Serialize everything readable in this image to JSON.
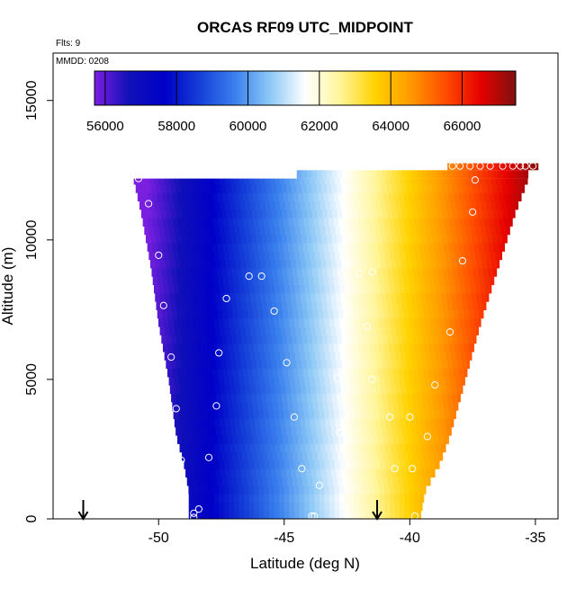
{
  "chart_data": {
    "type": "heatmap",
    "title": "ORCAS RF09 UTC_MIDPOINT",
    "xlabel": "Latitude (deg N)",
    "ylabel": "Altitude (m)",
    "xlim": [
      -54.2,
      -34.1
    ],
    "ylim": [
      0,
      16700
    ],
    "x_ticks": [
      -50,
      -45,
      -40,
      -35
    ],
    "x_tick_labels": [
      "-50",
      "-45",
      "-40",
      "-35"
    ],
    "y_ticks": [
      0,
      5000,
      10000,
      15000
    ],
    "y_tick_labels": [
      "0",
      "5000",
      "10000",
      "15000"
    ],
    "annotations": {
      "flights": "Flts: 9",
      "date": "MMDD: 0208"
    },
    "colorbar": {
      "min": 55700,
      "max": 67500,
      "ticks": [
        56000,
        58000,
        60000,
        62000,
        64000,
        66000
      ],
      "tick_labels": [
        "56000",
        "58000",
        "60000",
        "62000",
        "64000",
        "66000"
      ],
      "placement": "top-inside"
    },
    "colormap": [
      "#7a1fe0",
      "#1010b8",
      "#0000c8",
      "#1540d8",
      "#3a80ee",
      "#8cc8f6",
      "#ffffff",
      "#fff59a",
      "#ffd200",
      "#ff9a00",
      "#ff4c00",
      "#e60000",
      "#7f1010"
    ],
    "profile_edges": [
      {
        "alt": 0,
        "west": -48.8,
        "east": -39.6
      },
      {
        "alt": 1000,
        "west": -48.8,
        "east": -39.4
      },
      {
        "alt": 2000,
        "west": -49.0,
        "east": -38.8
      },
      {
        "alt": 3000,
        "west": -49.3,
        "east": -38.4
      },
      {
        "alt": 5000,
        "west": -49.6,
        "east": -37.8
      },
      {
        "alt": 7000,
        "west": -50.0,
        "east": -37.2
      },
      {
        "alt": 9000,
        "west": -50.3,
        "east": -36.5
      },
      {
        "alt": 11000,
        "west": -50.7,
        "east": -35.8
      },
      {
        "alt": 12200,
        "west": -51.0,
        "east": -35.3
      }
    ],
    "top_strip": {
      "alt_low": 12200,
      "alt_high": 12500,
      "west": -44.5,
      "east": -35.3
    },
    "top_cap": {
      "alt_low": 12500,
      "alt_high": 12750,
      "west": -38.5,
      "east": -34.9
    },
    "time_gradient": {
      "lat0": -49.0,
      "val0": 56800,
      "lat1": -35.5,
      "val1": 67000
    },
    "points": [
      [
        -50.8,
        12200
      ],
      [
        -50.4,
        11300
      ],
      [
        -50.0,
        9450
      ],
      [
        -49.8,
        7650
      ],
      [
        -49.5,
        5800
      ],
      [
        -49.3,
        3950
      ],
      [
        -49.1,
        2100
      ],
      [
        -48.6,
        200
      ],
      [
        -48.6,
        50
      ],
      [
        -48.4,
        350
      ],
      [
        -48.0,
        2200
      ],
      [
        -47.7,
        4050
      ],
      [
        -47.6,
        5950
      ],
      [
        -47.3,
        7900
      ],
      [
        -46.4,
        8700
      ],
      [
        -45.9,
        8700
      ],
      [
        -45.4,
        7450
      ],
      [
        -44.9,
        5600
      ],
      [
        -44.6,
        3650
      ],
      [
        -44.3,
        1800
      ],
      [
        -43.9,
        100
      ],
      [
        -43.8,
        100
      ],
      [
        -43.6,
        1200
      ],
      [
        -42.8,
        3100
      ],
      [
        -42.9,
        5050
      ],
      [
        -42.5,
        6950
      ],
      [
        -42.0,
        8800
      ],
      [
        -41.5,
        8850
      ],
      [
        -41.7,
        6900
      ],
      [
        -41.5,
        5000
      ],
      [
        -40.8,
        3650
      ],
      [
        -40.6,
        1800
      ],
      [
        -40.0,
        3650
      ],
      [
        -39.9,
        1800
      ],
      [
        -39.8,
        100
      ],
      [
        -39.3,
        2950
      ],
      [
        -39.0,
        4800
      ],
      [
        -38.4,
        6700
      ],
      [
        -37.9,
        9250
      ],
      [
        -37.5,
        11000
      ],
      [
        -37.4,
        12150
      ],
      [
        -38.3,
        12650
      ],
      [
        -38.0,
        12650
      ],
      [
        -37.6,
        12650
      ],
      [
        -37.2,
        12650
      ],
      [
        -36.8,
        12650
      ],
      [
        -36.3,
        12650
      ],
      [
        -35.9,
        12650
      ],
      [
        -35.6,
        12650
      ],
      [
        -35.4,
        12650
      ],
      [
        -35.1,
        12650
      ]
    ],
    "arrows": [
      {
        "lat": -53.0,
        "label": "flight start marker"
      },
      {
        "lat": -41.3,
        "label": "flight end marker"
      }
    ],
    "grid": false
  }
}
